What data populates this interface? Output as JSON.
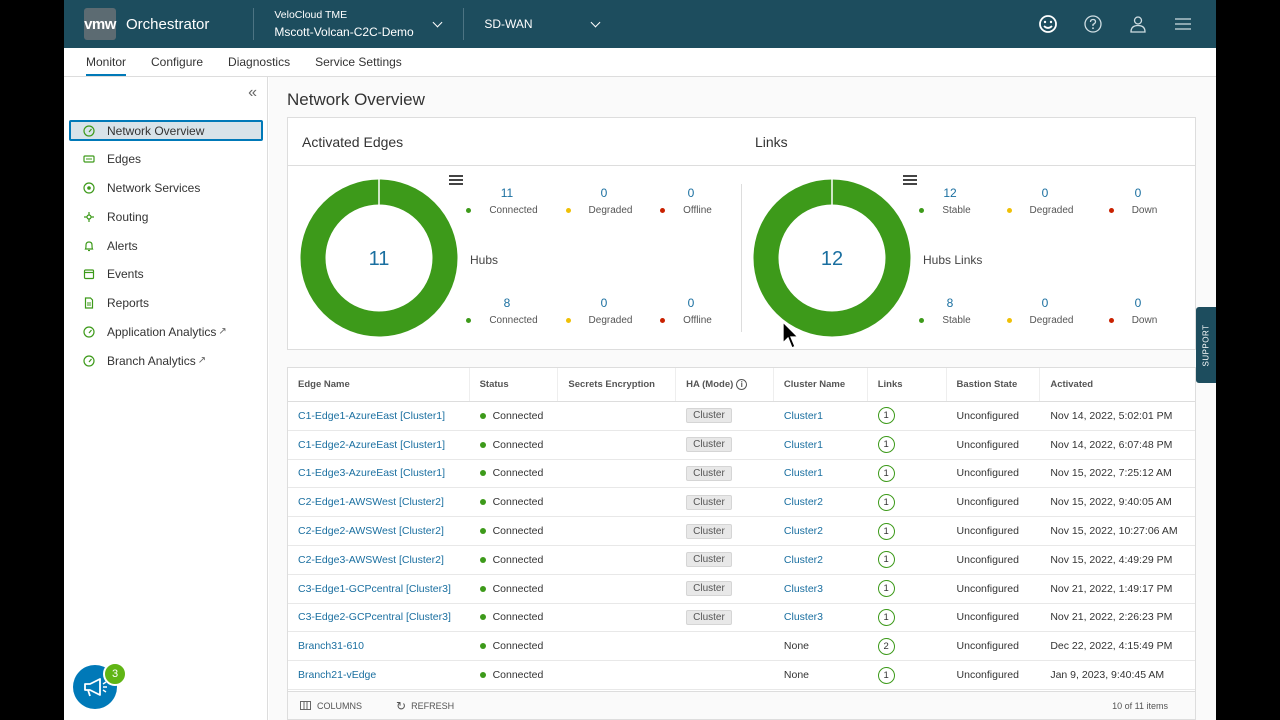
{
  "header": {
    "logo": "vmw",
    "app_title": "Orchestrator",
    "enterprise_label": "VeloCloud TME",
    "enterprise_name": "Mscott-Volcan-C2C-Demo",
    "product": "SD-WAN"
  },
  "tabs": [
    "Monitor",
    "Configure",
    "Diagnostics",
    "Service Settings"
  ],
  "active_tab": "Monitor",
  "sidebar": {
    "items": [
      {
        "label": "Network Overview",
        "icon": "gauge-icon",
        "active": true
      },
      {
        "label": "Edges",
        "icon": "edge-device-icon"
      },
      {
        "label": "Network Services",
        "icon": "network-icon"
      },
      {
        "label": "Routing",
        "icon": "routing-icon"
      },
      {
        "label": "Alerts",
        "icon": "bell-icon"
      },
      {
        "label": "Events",
        "icon": "events-icon"
      },
      {
        "label": "Reports",
        "icon": "document-icon"
      },
      {
        "label": "Application Analytics",
        "icon": "gauge-icon",
        "external": true
      },
      {
        "label": "Branch Analytics",
        "icon": "gauge-icon",
        "external": true
      }
    ]
  },
  "page": {
    "title": "Network Overview"
  },
  "activated_edges": {
    "title": "Activated Edges",
    "total": "11",
    "edges": [
      {
        "value": "11",
        "label": "Connected"
      },
      {
        "value": "0",
        "label": "Degraded"
      },
      {
        "value": "0",
        "label": "Offline"
      }
    ],
    "group_label": "Hubs",
    "hubs": [
      {
        "value": "8",
        "label": "Connected"
      },
      {
        "value": "0",
        "label": "Degraded"
      },
      {
        "value": "0",
        "label": "Offline"
      }
    ]
  },
  "links": {
    "title": "Links",
    "total": "12",
    "links": [
      {
        "value": "12",
        "label": "Stable"
      },
      {
        "value": "0",
        "label": "Degraded"
      },
      {
        "value": "0",
        "label": "Down"
      }
    ],
    "group_label": "Hubs Links",
    "hubs": [
      {
        "value": "8",
        "label": "Stable"
      },
      {
        "value": "0",
        "label": "Degraded"
      },
      {
        "value": "0",
        "label": "Down"
      }
    ]
  },
  "colors": {
    "green": "#3d9a1a",
    "yellow": "#efc006",
    "red": "#c92100",
    "link": "#1a6fa0",
    "header": "#1d4d5e"
  },
  "table": {
    "columns": [
      "Edge Name",
      "Status",
      "Secrets Encryption",
      "HA (Mode)",
      "Cluster Name",
      "Links",
      "Bastion State",
      "Activated"
    ],
    "rows": [
      {
        "name": "C1-Edge1-AzureEast [Cluster1]",
        "status": "Connected",
        "ha": "Cluster",
        "cluster": "Cluster1",
        "links": "1",
        "bastion": "Unconfigured",
        "activated": "Nov 14, 2022, 5:02:01 PM"
      },
      {
        "name": "C1-Edge2-AzureEast [Cluster1]",
        "status": "Connected",
        "ha": "Cluster",
        "cluster": "Cluster1",
        "links": "1",
        "bastion": "Unconfigured",
        "activated": "Nov 14, 2022, 6:07:48 PM"
      },
      {
        "name": "C1-Edge3-AzureEast [Cluster1]",
        "status": "Connected",
        "ha": "Cluster",
        "cluster": "Cluster1",
        "links": "1",
        "bastion": "Unconfigured",
        "activated": "Nov 15, 2022, 7:25:12 AM"
      },
      {
        "name": "C2-Edge1-AWSWest [Cluster2]",
        "status": "Connected",
        "ha": "Cluster",
        "cluster": "Cluster2",
        "links": "1",
        "bastion": "Unconfigured",
        "activated": "Nov 15, 2022, 9:40:05 AM"
      },
      {
        "name": "C2-Edge2-AWSWest [Cluster2]",
        "status": "Connected",
        "ha": "Cluster",
        "cluster": "Cluster2",
        "links": "1",
        "bastion": "Unconfigured",
        "activated": "Nov 15, 2022, 10:27:06 AM"
      },
      {
        "name": "C2-Edge3-AWSWest [Cluster2]",
        "status": "Connected",
        "ha": "Cluster",
        "cluster": "Cluster2",
        "links": "1",
        "bastion": "Unconfigured",
        "activated": "Nov 15, 2022, 4:49:29 PM"
      },
      {
        "name": "C3-Edge1-GCPcentral [Cluster3]",
        "status": "Connected",
        "ha": "Cluster",
        "cluster": "Cluster3",
        "links": "1",
        "bastion": "Unconfigured",
        "activated": "Nov 21, 2022, 1:49:17 PM"
      },
      {
        "name": "C3-Edge2-GCPcentral [Cluster3]",
        "status": "Connected",
        "ha": "Cluster",
        "cluster": "Cluster3",
        "links": "1",
        "bastion": "Unconfigured",
        "activated": "Nov 21, 2022, 2:26:23 PM"
      },
      {
        "name": "Branch31-610",
        "status": "Connected",
        "ha": "",
        "cluster": "None",
        "links": "2",
        "bastion": "Unconfigured",
        "activated": "Dec 22, 2022, 4:15:49 PM"
      },
      {
        "name": "Branch21-vEdge",
        "status": "Connected",
        "ha": "",
        "cluster": "None",
        "links": "1",
        "bastion": "Unconfigured",
        "activated": "Jan 9, 2023, 9:40:45 AM"
      }
    ],
    "footer": {
      "columns_btn": "COLUMNS",
      "refresh_btn": "REFRESH",
      "count": "10 of 11 items"
    }
  },
  "support_tab": "SUPPORT",
  "help_badge": "3"
}
